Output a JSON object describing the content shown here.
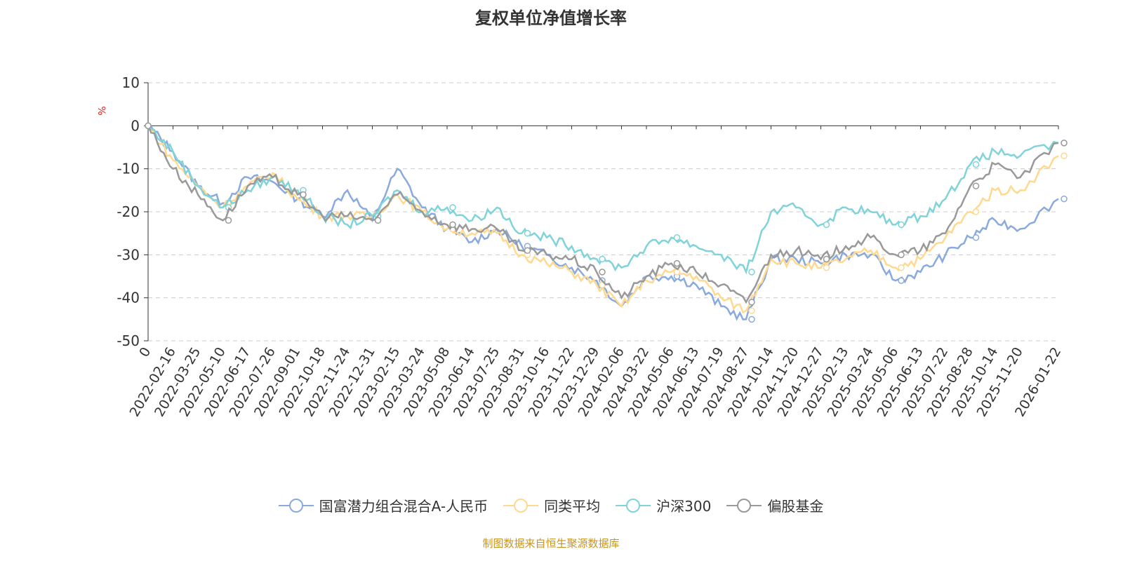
{
  "chart_data": {
    "type": "line",
    "title": "复权单位净值增长率",
    "ylabel": "%",
    "xlabel": "",
    "ylim": [
      -50,
      10
    ],
    "yticks": [
      10,
      0,
      -10,
      -20,
      -30,
      -40,
      -50
    ],
    "grid": true,
    "legend_position": "bottom",
    "x": [
      "0",
      "2022-02-16",
      "2022-03-25",
      "2022-05-10",
      "2022-06-17",
      "2022-07-26",
      "2022-09-01",
      "2022-10-18",
      "2022-11-24",
      "2022-12-31",
      "2023-02-15",
      "2023-03-24",
      "2023-05-08",
      "2023-06-14",
      "2023-07-25",
      "2023-08-31",
      "2023-10-16",
      "2023-11-22",
      "2023-12-29",
      "2024-02-06",
      "2024-03-22",
      "2024-05-06",
      "2024-06-13",
      "2024-07-19",
      "2024-08-27",
      "2024-10-14",
      "2024-11-20",
      "2024-12-27",
      "2025-02-13",
      "2025-03-24",
      "2025-05-06",
      "2025-06-13",
      "2025-07-22",
      "2025-08-28",
      "2025-10-14",
      "2025-11-20",
      "2026-01-22"
    ],
    "series": [
      {
        "name": "国富潜力组合混合A-人民币",
        "color": "#8aa9dc",
        "values": [
          0,
          -6,
          -14,
          -18,
          -12,
          -13,
          -17,
          -21,
          -15,
          -22,
          -10,
          -19,
          -24,
          -27,
          -24,
          -28,
          -30,
          -33,
          -36,
          -42,
          -35,
          -35,
          -37,
          -42,
          -45,
          -31,
          -31,
          -32,
          -30,
          -30,
          -36,
          -34,
          -30,
          -26,
          -22,
          -24,
          -17
        ]
      },
      {
        "name": "同类平均",
        "color": "#ffd98f",
        "values": [
          0,
          -8,
          -14,
          -19,
          -14,
          -11,
          -17,
          -21,
          -21,
          -21,
          -16,
          -20,
          -24,
          -25,
          -25,
          -30,
          -32,
          -34,
          -37,
          -42,
          -36,
          -34,
          -35,
          -40,
          -43,
          -31,
          -32,
          -33,
          -31,
          -29,
          -33,
          -31,
          -26,
          -20,
          -15,
          -15,
          -7
        ]
      },
      {
        "name": "沪深300",
        "color": "#7fd3d9",
        "values": [
          0,
          -6,
          -14,
          -19,
          -15,
          -12,
          -15,
          -21,
          -23,
          -21,
          -15,
          -20,
          -19,
          -22,
          -19,
          -25,
          -26,
          -28,
          -31,
          -33,
          -28,
          -26,
          -28,
          -30,
          -34,
          -20,
          -19,
          -23,
          -19,
          -20,
          -23,
          -21,
          -17,
          -9,
          -6,
          -7,
          -4
        ]
      },
      {
        "name": "偏股基金",
        "color": "#999999",
        "values": [
          0,
          -10,
          -16,
          -22,
          -14,
          -12,
          -16,
          -21,
          -21,
          -22,
          -16,
          -20,
          -23,
          -24,
          -24,
          -29,
          -30,
          -31,
          -34,
          -40,
          -35,
          -32,
          -34,
          -37,
          -41,
          -30,
          -29,
          -31,
          -28,
          -26,
          -30,
          -29,
          -25,
          -14,
          -9,
          -12,
          -4
        ]
      }
    ]
  },
  "footer": "制图数据来自恒生聚源数据库"
}
